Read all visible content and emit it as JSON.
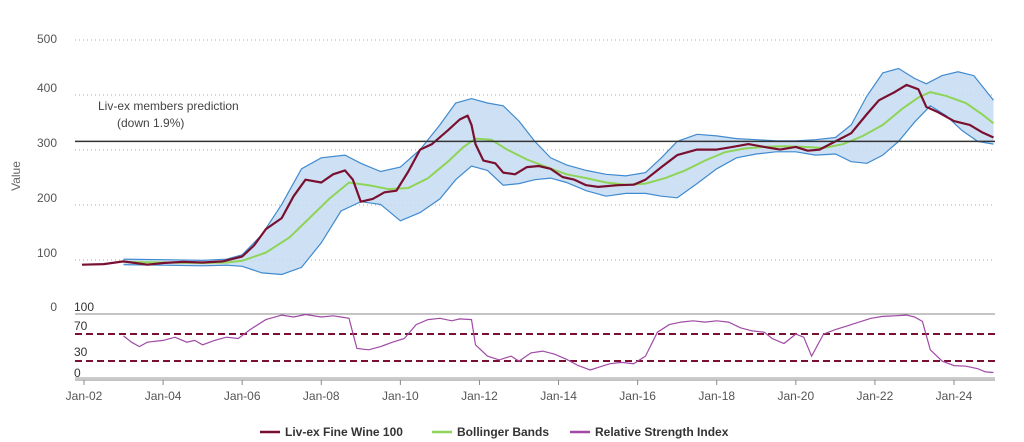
{
  "chart_data": {
    "type": "line",
    "ylabel": "Value",
    "yticks": [
      0,
      100,
      200,
      300,
      400,
      500
    ],
    "rsi_ticks": [
      100,
      70,
      30,
      0
    ],
    "xticks": [
      "Jan-02",
      "Jan-04",
      "Jan-06",
      "Jan-08",
      "Jan-10",
      "Jan-12",
      "Jan-14",
      "Jan-16",
      "Jan-18",
      "Jan-20",
      "Jan-22",
      "Jan-24"
    ],
    "grid": true,
    "legend_position": "bottom",
    "annotation": {
      "line1": "Liv-ex members prediction",
      "line2": "(down 1.9%)",
      "value": 315
    },
    "colors": {
      "livex": "#7a1030",
      "bollinger": "#8ed457",
      "band_fill": "#c5dcf2",
      "band_line": "#3f8ad0",
      "rsi": "#a04aa6",
      "prediction": "#333333",
      "rsi_thresholds": "#7a1030"
    },
    "series": [
      {
        "name": "Liv-ex Fine Wine 100",
        "points": [
          [
            2001.95,
            90
          ],
          [
            2002.5,
            91
          ],
          [
            2003.0,
            96
          ],
          [
            2003.3,
            93
          ],
          [
            2003.6,
            90
          ],
          [
            2004.0,
            93
          ],
          [
            2004.5,
            95
          ],
          [
            2005.0,
            94
          ],
          [
            2005.5,
            96
          ],
          [
            2006.0,
            105
          ],
          [
            2006.3,
            125
          ],
          [
            2006.6,
            155
          ],
          [
            2007.0,
            175
          ],
          [
            2007.3,
            215
          ],
          [
            2007.6,
            245
          ],
          [
            2008.0,
            240
          ],
          [
            2008.3,
            255
          ],
          [
            2008.6,
            262
          ],
          [
            2008.8,
            245
          ],
          [
            2009.0,
            205
          ],
          [
            2009.3,
            210
          ],
          [
            2009.6,
            222
          ],
          [
            2009.9,
            225
          ],
          [
            2010.2,
            260
          ],
          [
            2010.5,
            300
          ],
          [
            2010.8,
            310
          ],
          [
            2011.2,
            335
          ],
          [
            2011.5,
            355
          ],
          [
            2011.7,
            362
          ],
          [
            2011.8,
            345
          ],
          [
            2011.9,
            310
          ],
          [
            2012.1,
            280
          ],
          [
            2012.4,
            275
          ],
          [
            2012.6,
            258
          ],
          [
            2012.9,
            255
          ],
          [
            2013.2,
            268
          ],
          [
            2013.5,
            270
          ],
          [
            2013.8,
            265
          ],
          [
            2014.1,
            250
          ],
          [
            2014.4,
            245
          ],
          [
            2014.7,
            235
          ],
          [
            2015.0,
            232
          ],
          [
            2015.5,
            235
          ],
          [
            2015.9,
            236
          ],
          [
            2016.2,
            245
          ],
          [
            2016.6,
            268
          ],
          [
            2017.0,
            290
          ],
          [
            2017.5,
            300
          ],
          [
            2018.0,
            300
          ],
          [
            2018.4,
            305
          ],
          [
            2018.8,
            310
          ],
          [
            2019.2,
            305
          ],
          [
            2019.6,
            300
          ],
          [
            2020.0,
            305
          ],
          [
            2020.3,
            298
          ],
          [
            2020.6,
            300
          ],
          [
            2021.0,
            315
          ],
          [
            2021.4,
            330
          ],
          [
            2021.8,
            365
          ],
          [
            2022.1,
            390
          ],
          [
            2022.5,
            405
          ],
          [
            2022.8,
            418
          ],
          [
            2023.1,
            410
          ],
          [
            2023.3,
            378
          ],
          [
            2023.6,
            368
          ],
          [
            2024.0,
            352
          ],
          [
            2024.4,
            345
          ],
          [
            2024.7,
            332
          ],
          [
            2025.0,
            322
          ]
        ]
      },
      {
        "name": "Bollinger Bands",
        "middle": [
          [
            2003.0,
            95
          ],
          [
            2004.0,
            94
          ],
          [
            2005.0,
            93
          ],
          [
            2005.6,
            94
          ],
          [
            2006.0,
            97
          ],
          [
            2006.6,
            112
          ],
          [
            2007.2,
            140
          ],
          [
            2007.7,
            175
          ],
          [
            2008.2,
            210
          ],
          [
            2008.7,
            240
          ],
          [
            2009.2,
            235
          ],
          [
            2009.7,
            228
          ],
          [
            2010.2,
            230
          ],
          [
            2010.7,
            248
          ],
          [
            2011.2,
            278
          ],
          [
            2011.6,
            305
          ],
          [
            2011.9,
            320
          ],
          [
            2012.3,
            318
          ],
          [
            2012.7,
            300
          ],
          [
            2013.2,
            282
          ],
          [
            2013.7,
            268
          ],
          [
            2014.2,
            255
          ],
          [
            2014.7,
            248
          ],
          [
            2015.2,
            240
          ],
          [
            2015.7,
            236
          ],
          [
            2016.2,
            238
          ],
          [
            2016.7,
            248
          ],
          [
            2017.2,
            262
          ],
          [
            2017.7,
            280
          ],
          [
            2018.2,
            295
          ],
          [
            2018.7,
            302
          ],
          [
            2019.2,
            305
          ],
          [
            2019.7,
            306
          ],
          [
            2020.2,
            305
          ],
          [
            2020.7,
            303
          ],
          [
            2021.2,
            310
          ],
          [
            2021.7,
            325
          ],
          [
            2022.2,
            345
          ],
          [
            2022.7,
            375
          ],
          [
            2023.1,
            395
          ],
          [
            2023.4,
            405
          ],
          [
            2023.8,
            398
          ],
          [
            2024.3,
            385
          ],
          [
            2024.7,
            365
          ],
          [
            2025.0,
            348
          ]
        ],
        "upper": [
          [
            2003.0,
            100
          ],
          [
            2004.0,
            99
          ],
          [
            2005.0,
            98
          ],
          [
            2005.6,
            100
          ],
          [
            2006.0,
            108
          ],
          [
            2006.5,
            145
          ],
          [
            2007.0,
            200
          ],
          [
            2007.5,
            265
          ],
          [
            2008.0,
            285
          ],
          [
            2008.6,
            290
          ],
          [
            2009.0,
            275
          ],
          [
            2009.5,
            260
          ],
          [
            2010.0,
            268
          ],
          [
            2010.5,
            300
          ],
          [
            2011.0,
            345
          ],
          [
            2011.4,
            385
          ],
          [
            2011.8,
            393
          ],
          [
            2012.2,
            385
          ],
          [
            2012.6,
            380
          ],
          [
            2013.0,
            352
          ],
          [
            2013.4,
            315
          ],
          [
            2013.8,
            285
          ],
          [
            2014.2,
            272
          ],
          [
            2014.7,
            262
          ],
          [
            2015.2,
            255
          ],
          [
            2015.7,
            252
          ],
          [
            2016.2,
            258
          ],
          [
            2016.6,
            285
          ],
          [
            2017.0,
            315
          ],
          [
            2017.5,
            328
          ],
          [
            2018.0,
            325
          ],
          [
            2018.5,
            320
          ],
          [
            2019.0,
            318
          ],
          [
            2019.5,
            316
          ],
          [
            2020.0,
            316
          ],
          [
            2020.5,
            318
          ],
          [
            2021.0,
            322
          ],
          [
            2021.4,
            345
          ],
          [
            2021.8,
            398
          ],
          [
            2022.2,
            440
          ],
          [
            2022.6,
            448
          ],
          [
            2023.0,
            430
          ],
          [
            2023.3,
            420
          ],
          [
            2023.7,
            435
          ],
          [
            2024.1,
            442
          ],
          [
            2024.5,
            435
          ],
          [
            2025.0,
            390
          ]
        ],
        "lower": [
          [
            2003.0,
            90
          ],
          [
            2004.0,
            89
          ],
          [
            2005.0,
            88
          ],
          [
            2005.6,
            89
          ],
          [
            2006.0,
            87
          ],
          [
            2006.5,
            75
          ],
          [
            2007.0,
            72
          ],
          [
            2007.5,
            85
          ],
          [
            2008.0,
            130
          ],
          [
            2008.5,
            188
          ],
          [
            2009.0,
            205
          ],
          [
            2009.5,
            200
          ],
          [
            2010.0,
            170
          ],
          [
            2010.5,
            185
          ],
          [
            2011.0,
            210
          ],
          [
            2011.4,
            245
          ],
          [
            2011.8,
            270
          ],
          [
            2012.2,
            262
          ],
          [
            2012.6,
            235
          ],
          [
            2013.0,
            238
          ],
          [
            2013.4,
            245
          ],
          [
            2013.8,
            248
          ],
          [
            2014.2,
            240
          ],
          [
            2014.7,
            225
          ],
          [
            2015.2,
            215
          ],
          [
            2015.7,
            220
          ],
          [
            2016.2,
            220
          ],
          [
            2016.6,
            215
          ],
          [
            2017.0,
            212
          ],
          [
            2017.5,
            238
          ],
          [
            2018.0,
            265
          ],
          [
            2018.5,
            285
          ],
          [
            2019.0,
            292
          ],
          [
            2019.5,
            296
          ],
          [
            2020.0,
            296
          ],
          [
            2020.5,
            290
          ],
          [
            2021.0,
            292
          ],
          [
            2021.4,
            278
          ],
          [
            2021.8,
            275
          ],
          [
            2022.2,
            290
          ],
          [
            2022.6,
            315
          ],
          [
            2023.0,
            350
          ],
          [
            2023.4,
            380
          ],
          [
            2023.8,
            362
          ],
          [
            2024.2,
            335
          ],
          [
            2024.6,
            315
          ],
          [
            2025.0,
            310
          ]
        ]
      },
      {
        "name": "Relative Strength Index",
        "points": [
          [
            2003.0,
            62
          ],
          [
            2003.2,
            52
          ],
          [
            2003.4,
            45
          ],
          [
            2003.6,
            52
          ],
          [
            2004.0,
            55
          ],
          [
            2004.3,
            60
          ],
          [
            2004.6,
            52
          ],
          [
            2004.8,
            55
          ],
          [
            2005.0,
            48
          ],
          [
            2005.3,
            55
          ],
          [
            2005.6,
            60
          ],
          [
            2005.9,
            58
          ],
          [
            2006.2,
            72
          ],
          [
            2006.6,
            88
          ],
          [
            2007.0,
            95
          ],
          [
            2007.3,
            92
          ],
          [
            2007.6,
            96
          ],
          [
            2008.0,
            92
          ],
          [
            2008.3,
            94
          ],
          [
            2008.5,
            92
          ],
          [
            2008.7,
            90
          ],
          [
            2008.9,
            42
          ],
          [
            2009.2,
            40
          ],
          [
            2009.5,
            45
          ],
          [
            2009.8,
            52
          ],
          [
            2010.1,
            58
          ],
          [
            2010.4,
            80
          ],
          [
            2010.7,
            88
          ],
          [
            2011.0,
            90
          ],
          [
            2011.3,
            86
          ],
          [
            2011.5,
            89
          ],
          [
            2011.8,
            88
          ],
          [
            2011.9,
            48
          ],
          [
            2012.2,
            30
          ],
          [
            2012.5,
            24
          ],
          [
            2012.8,
            30
          ],
          [
            2013.0,
            22
          ],
          [
            2013.3,
            35
          ],
          [
            2013.6,
            38
          ],
          [
            2013.9,
            33
          ],
          [
            2014.2,
            25
          ],
          [
            2014.5,
            15
          ],
          [
            2014.8,
            8
          ],
          [
            2015.0,
            12
          ],
          [
            2015.3,
            18
          ],
          [
            2015.6,
            20
          ],
          [
            2015.9,
            18
          ],
          [
            2016.2,
            30
          ],
          [
            2016.5,
            68
          ],
          [
            2016.8,
            80
          ],
          [
            2017.1,
            84
          ],
          [
            2017.4,
            86
          ],
          [
            2017.7,
            84
          ],
          [
            2018.0,
            86
          ],
          [
            2018.3,
            84
          ],
          [
            2018.6,
            75
          ],
          [
            2018.9,
            70
          ],
          [
            2019.2,
            68
          ],
          [
            2019.4,
            58
          ],
          [
            2019.7,
            50
          ],
          [
            2020.0,
            65
          ],
          [
            2020.2,
            60
          ],
          [
            2020.4,
            30
          ],
          [
            2020.7,
            65
          ],
          [
            2021.0,
            72
          ],
          [
            2021.3,
            78
          ],
          [
            2021.6,
            84
          ],
          [
            2021.9,
            90
          ],
          [
            2022.2,
            93
          ],
          [
            2022.5,
            94
          ],
          [
            2022.8,
            95
          ],
          [
            2023.0,
            92
          ],
          [
            2023.2,
            85
          ],
          [
            2023.4,
            40
          ],
          [
            2023.7,
            22
          ],
          [
            2024.0,
            15
          ],
          [
            2024.3,
            14
          ],
          [
            2024.6,
            10
          ],
          [
            2024.8,
            5
          ],
          [
            2025.0,
            4
          ]
        ]
      }
    ]
  }
}
